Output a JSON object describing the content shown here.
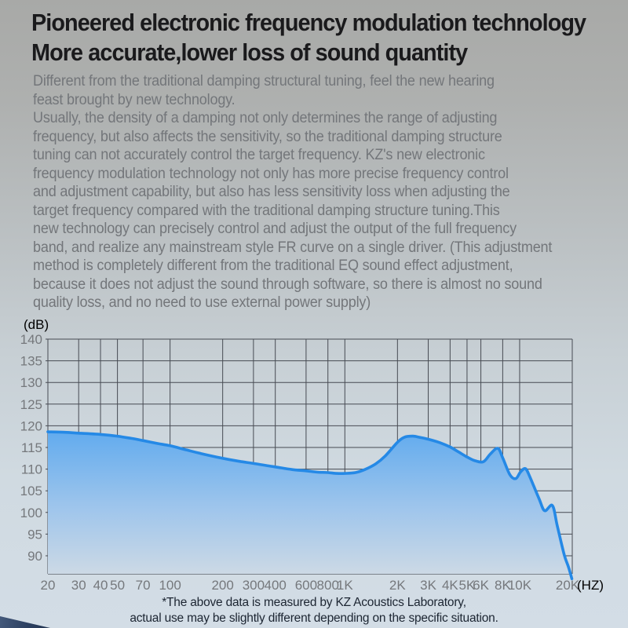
{
  "header": {
    "line1": "Pioneered electronic frequency modulation technology",
    "line2": "More accurate,lower loss of sound quantity"
  },
  "body": {
    "lines": [
      "Different from the traditional damping structural tuning, feel the new hearing",
      "feast brought by new technology.",
      "Usually, the density of a damping not only determines the range of adjusting",
      "frequency, but also affects the sensitivity, so the traditional damping structure",
      "tuning can not accurately control the target frequency. KZ's new electronic",
      "frequency modulation technology not only has more precise frequency control",
      "and adjustment capability, but also has less sensitivity loss when adjusting the",
      "target frequency compared with the traditional damping structure tuning.This",
      "new technology can precisely control and adjust the output of the full frequency",
      "band, and realize any mainstream style FR curve on a single driver. (This adjustment",
      "method is completely different from the traditional EQ sound effect adjustment,",
      "because it does not adjust the sound through software, so there is almost no sound",
      "quality loss, and no need to use external power supply)"
    ]
  },
  "chart_data": {
    "type": "area",
    "title": "",
    "ylabel": "(dB)",
    "xlabel_suffix": "(HZ)",
    "x_scale": "log",
    "xlim": [
      20,
      20000
    ],
    "ylim": [
      85.8,
      140
    ],
    "grid": true,
    "y_ticks": [
      140,
      135,
      130,
      125,
      120,
      115,
      110,
      105,
      100,
      95,
      90
    ],
    "x_tick_labels": [
      "20",
      "30",
      "40",
      "50",
      "70",
      "100",
      "200",
      "300",
      "400",
      "600",
      "800",
      "1K",
      "2K",
      "3K",
      "4K",
      "5K",
      "6K",
      "8K",
      "10K",
      "20K"
    ],
    "x_tick_values": [
      20,
      30,
      40,
      50,
      70,
      100,
      200,
      300,
      400,
      600,
      800,
      1000,
      2000,
      3000,
      4000,
      5000,
      6000,
      8000,
      10000,
      20000
    ],
    "series": [
      {
        "name": "frequency-response-curve",
        "color": "#2589e6",
        "points": [
          [
            20,
            118.6
          ],
          [
            25,
            118.5
          ],
          [
            30,
            118.3
          ],
          [
            40,
            118.0
          ],
          [
            50,
            117.6
          ],
          [
            60,
            117.1
          ],
          [
            70,
            116.6
          ],
          [
            85,
            115.9
          ],
          [
            100,
            115.4
          ],
          [
            125,
            114.4
          ],
          [
            150,
            113.6
          ],
          [
            200,
            112.5
          ],
          [
            250,
            111.8
          ],
          [
            300,
            111.3
          ],
          [
            400,
            110.5
          ],
          [
            500,
            109.9
          ],
          [
            600,
            109.6
          ],
          [
            700,
            109.3
          ],
          [
            800,
            109.2
          ],
          [
            900,
            109.0
          ],
          [
            1000,
            109.0
          ],
          [
            1150,
            109.2
          ],
          [
            1300,
            109.9
          ],
          [
            1500,
            111.2
          ],
          [
            1700,
            113.0
          ],
          [
            2000,
            116.2
          ],
          [
            2200,
            117.4
          ],
          [
            2450,
            117.6
          ],
          [
            2700,
            117.3
          ],
          [
            3000,
            116.9
          ],
          [
            3500,
            116.1
          ],
          [
            4000,
            115.1
          ],
          [
            4500,
            113.9
          ],
          [
            5000,
            112.8
          ],
          [
            5500,
            112.0
          ],
          [
            6200,
            111.7
          ],
          [
            6800,
            113.5
          ],
          [
            7500,
            114.8
          ],
          [
            8000,
            112.6
          ],
          [
            8800,
            108.7
          ],
          [
            9500,
            107.8
          ],
          [
            10100,
            109.3
          ],
          [
            10800,
            110.1
          ],
          [
            11500,
            108.0
          ],
          [
            12900,
            103.2
          ],
          [
            13900,
            100.4
          ],
          [
            15400,
            101.6
          ],
          [
            16400,
            97.0
          ],
          [
            18000,
            90.2
          ],
          [
            19000,
            87.5
          ],
          [
            19900,
            84.7
          ]
        ]
      }
    ]
  },
  "footnote": {
    "line1": "*The above data is measured by KZ Acoustics Laboratory,",
    "line2": "actual use may be slightly different depending on the specific situation."
  },
  "colors": {
    "headline_text": "#1a1a1c",
    "body_text": "#73767a",
    "grid": "#474b53",
    "tick_label": "#75787c",
    "curve_stroke": "#2589e6",
    "fill_top": "#5da9ee",
    "fill_mid": "#9ec5ec",
    "fill_bottom": "#ccd9e5",
    "footnote_text": "#1c2532",
    "corner_wave": "#2c4061"
  }
}
